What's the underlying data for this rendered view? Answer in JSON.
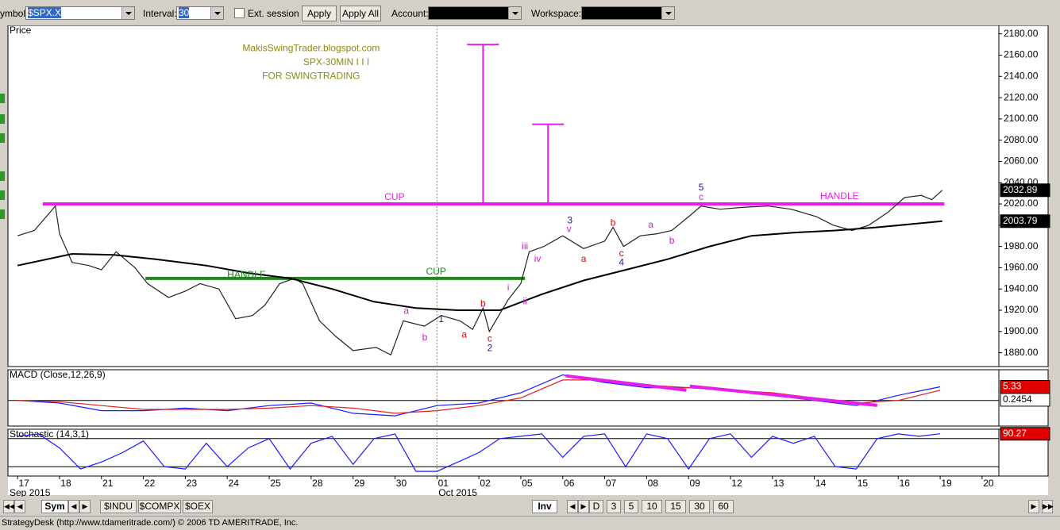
{
  "toolbar": {
    "symbol_label": "ymbol:",
    "symbol": "$SPX.X",
    "interval_label": "Interval:",
    "interval": "30",
    "ext_session": "Ext. session",
    "apply": "Apply",
    "apply_all": "Apply All",
    "account_label": "Account:",
    "workspace_label": "Workspace:"
  },
  "chart_data": [
    {
      "type": "line",
      "title": "Price",
      "xlim": [
        -0.23,
        23.4
      ],
      "ylim": [
        1867,
        2188
      ],
      "yticks": [
        {
          "value": 1880,
          "label": "1880.00"
        },
        {
          "value": 1900,
          "label": "1900.00"
        },
        {
          "value": 1920,
          "label": "1920.00"
        },
        {
          "value": 1940,
          "label": "1940.00"
        },
        {
          "value": 1960,
          "label": "1960.00"
        },
        {
          "value": 1980,
          "label": "1980.00"
        },
        {
          "value": 2000,
          "label": "2000.00"
        },
        {
          "value": 2020,
          "label": "2020.00"
        },
        {
          "value": 2040,
          "label": "2040.00"
        },
        {
          "value": 2060,
          "label": "2060.00"
        },
        {
          "value": 2080,
          "label": "2080.00"
        },
        {
          "value": 2100,
          "label": "2100.00"
        },
        {
          "value": 2120,
          "label": "2120.00"
        },
        {
          "value": 2140,
          "label": "2140.00"
        },
        {
          "value": 2160,
          "label": "2160.00"
        },
        {
          "value": 2180,
          "label": "2180.00"
        }
      ],
      "series": [
        {
          "color": "#222222",
          "x": [
            0,
            0.4,
            0.9,
            1.0,
            1.3,
            1.7,
            2.0,
            2.35,
            2.8,
            3.1,
            3.6,
            4.0,
            4.35,
            4.8,
            5.2,
            5.6,
            5.9,
            6.25,
            6.6,
            6.8,
            7.2,
            7.6,
            8.0,
            8.55,
            8.9,
            9.2,
            9.7,
            10.1,
            10.55,
            10.85,
            11.1,
            11.25,
            11.7,
            12.0,
            12.2,
            12.55,
            13.0,
            13.5,
            14.0,
            14.2,
            14.45,
            14.85,
            15.25,
            15.6,
            16.0,
            16.3,
            16.75,
            17.35,
            17.9,
            18.45,
            19.05,
            19.45,
            19.9,
            20.3,
            20.75,
            21.15,
            21.55,
            21.8,
            22.05
          ],
          "values": [
            1990,
            1995,
            2018,
            1992,
            1965,
            1962,
            1958,
            1975,
            1960,
            1945,
            1932,
            1938,
            1945,
            1940,
            1912,
            1915,
            1925,
            1945,
            1950,
            1945,
            1910,
            1895,
            1882,
            1885,
            1878,
            1910,
            1905,
            1915,
            1910,
            1902,
            1922,
            1900,
            1930,
            1945,
            1975,
            1980,
            1990,
            1978,
            1985,
            1998,
            1980,
            1990,
            1992,
            1995,
            2008,
            2018,
            2015,
            2017,
            2018,
            2015,
            2008,
            2000,
            1995,
            2000,
            2012,
            2026,
            2028,
            2024,
            2032.89
          ]
        },
        {
          "color": "#000000",
          "x": [
            0,
            1.3,
            2.3,
            3.3,
            4.5,
            5.5,
            6.5,
            7.5,
            8.5,
            9.5,
            10.5,
            11.5,
            12.5,
            13.5,
            14.5,
            15.5,
            16.5,
            17.5,
            18.5,
            19.5,
            20.5,
            22.05
          ],
          "values": [
            1962,
            1973,
            1972,
            1968,
            1962,
            1955,
            1950,
            1940,
            1928,
            1922,
            1920,
            1920,
            1935,
            1948,
            1958,
            1968,
            1980,
            1990,
            1993,
            1995,
            1998,
            2003.79
          ]
        }
      ],
      "levels": [
        {
          "value": 2020,
          "x": [
            0.6,
            22.1
          ],
          "color": "#e81ee8"
        },
        {
          "value": 1950,
          "x": [
            3.05,
            12.1
          ],
          "color": "#1a8a1a"
        }
      ],
      "targets": [
        {
          "x": 11.1,
          "values": [
            2020,
            2170
          ],
          "color": "#e81ee8"
        },
        {
          "x": 12.65,
          "values": [
            2020,
            2095
          ],
          "color": "#e81ee8"
        }
      ],
      "last_values": [
        {
          "value": 2032.89,
          "color": "#000000"
        },
        {
          "value": 2003.79,
          "color": "#000000"
        }
      ],
      "annotations": [
        {
          "text": "MakisSwingTrader.blogspot.com",
          "x": 7.0,
          "y": 2166,
          "color": "#8a8a10"
        },
        {
          "text": "SPX-30MIN  I I I",
          "x": 7.6,
          "y": 2153,
          "color": "#8a8a10"
        },
        {
          "text": "FOR SWINGTRADING",
          "x": 7.0,
          "y": 2140,
          "color": "#8a8a10"
        },
        {
          "text": "CUP",
          "x": 8.99,
          "y": 2026,
          "color": "#e81ee8"
        },
        {
          "text": "HANDLE",
          "x": 19.6,
          "y": 2027,
          "color": "#e81ee8"
        },
        {
          "text": "HANDLE",
          "x": 5.46,
          "y": 1953,
          "color": "#1a8a1a"
        },
        {
          "text": "CUP",
          "x": 9.98,
          "y": 1956,
          "color": "#1a8a1a"
        },
        {
          "text": "1",
          "x": 10.1,
          "y": 1911,
          "color": "#2020a0"
        },
        {
          "text": "2",
          "x": 11.26,
          "y": 1884,
          "color": "#2020a0"
        },
        {
          "text": "3",
          "x": 13.17,
          "y": 2004,
          "color": "#2020a0"
        },
        {
          "text": "4",
          "x": 14.4,
          "y": 1964.5,
          "color": "#2020a0"
        },
        {
          "text": "5",
          "x": 16.3,
          "y": 2035,
          "color": "#2020a0"
        },
        {
          "text": "a",
          "x": 9.27,
          "y": 1919,
          "color": "#d020d0"
        },
        {
          "text": "b",
          "x": 9.71,
          "y": 1894,
          "color": "#d020d0"
        },
        {
          "text": "a",
          "x": 10.65,
          "y": 1896.5,
          "color": "#c01010"
        },
        {
          "text": "b",
          "x": 11.1,
          "y": 1925.6,
          "color": "#c01010"
        },
        {
          "text": "c",
          "x": 11.26,
          "y": 1893,
          "color": "#c01010"
        },
        {
          "text": "i",
          "x": 11.7,
          "y": 1941,
          "color": "#d020d0"
        },
        {
          "text": "ii",
          "x": 12.1,
          "y": 1928,
          "color": "#d020d0"
        },
        {
          "text": "iii",
          "x": 12.1,
          "y": 1980,
          "color": "#d020d0"
        },
        {
          "text": "iv",
          "x": 12.4,
          "y": 1968,
          "color": "#d020d0"
        },
        {
          "text": "v",
          "x": 13.15,
          "y": 1996,
          "color": "#d020d0"
        },
        {
          "text": "a",
          "x": 13.5,
          "y": 1968,
          "color": "#c01010"
        },
        {
          "text": "b",
          "x": 14.2,
          "y": 2002,
          "color": "#c01010"
        },
        {
          "text": "c",
          "x": 14.4,
          "y": 1973,
          "color": "#c01010"
        },
        {
          "text": "a",
          "x": 15.1,
          "y": 2000,
          "color": "#d020d0"
        },
        {
          "text": "b",
          "x": 15.6,
          "y": 1985,
          "color": "#d020d0"
        },
        {
          "text": "c",
          "x": 16.3,
          "y": 2026,
          "color": "#d020d0"
        }
      ]
    },
    {
      "type": "line",
      "title": "MACD (Close,12,26,9)",
      "xlim": [
        -0.23,
        23.4
      ],
      "ylim": [
        -10,
        12
      ],
      "hlines": [
        0
      ],
      "series": [
        {
          "color": "#1a1aff",
          "x": [
            0,
            1,
            2,
            3,
            4,
            5,
            6,
            7,
            8,
            9,
            10,
            11,
            12,
            13,
            14,
            15,
            16,
            17,
            18,
            19,
            20,
            21,
            22
          ],
          "values": [
            0,
            -1,
            -4,
            -4,
            -3,
            -4,
            -2,
            -1,
            -5,
            -6,
            -2,
            -1,
            3,
            10,
            7,
            5,
            5,
            4,
            2,
            0,
            -2,
            2,
            5.33
          ]
        },
        {
          "color": "#e02020",
          "x": [
            0,
            1,
            2,
            3,
            4,
            5,
            6,
            7,
            8,
            9,
            10,
            11,
            12,
            13,
            14,
            15,
            16,
            17,
            18,
            19,
            20,
            21,
            22
          ],
          "values": [
            0,
            -0.5,
            -2,
            -3.5,
            -3.5,
            -3.5,
            -3,
            -2,
            -3,
            -5,
            -4,
            -2,
            1,
            8,
            8,
            6,
            5,
            4,
            3,
            1,
            -1,
            0,
            4
          ]
        }
      ],
      "trendlines": [
        {
          "x": [
            13.07,
            15.95
          ],
          "values": [
            9.6,
            4.0
          ],
          "color": "#e81ee8"
        },
        {
          "x": [
            16.03,
            20.5
          ],
          "values": [
            5.6,
            -1.9
          ],
          "color": "#e81ee8"
        }
      ],
      "last_values": [
        {
          "value": 5.33,
          "color": "#e00000"
        },
        {
          "value": 0.2454,
          "color": "#ffffff"
        }
      ]
    },
    {
      "type": "line",
      "title": "Stochastic (14,3,1)",
      "xlim": [
        -0.23,
        23.4
      ],
      "ylim": [
        0,
        100
      ],
      "hlines": [
        80,
        20
      ],
      "series": [
        {
          "color": "#1a1aff",
          "x": [
            0,
            0.5,
            1,
            1.5,
            2,
            2.5,
            3,
            3.5,
            4,
            4.5,
            5,
            5.5,
            6,
            6.5,
            7,
            7.5,
            8,
            8.5,
            9,
            9.5,
            10,
            10.5,
            11,
            11.5,
            12,
            12.5,
            13,
            13.5,
            14,
            14.5,
            15,
            15.5,
            16,
            16.5,
            17,
            17.5,
            18,
            18.5,
            19,
            19.5,
            20,
            20.5,
            21,
            21.5,
            22
          ],
          "values": [
            85,
            90,
            60,
            15,
            30,
            50,
            75,
            20,
            15,
            70,
            20,
            60,
            80,
            15,
            70,
            85,
            25,
            80,
            90,
            10,
            10,
            30,
            50,
            80,
            85,
            90,
            40,
            85,
            90,
            20,
            90,
            80,
            15,
            80,
            90,
            40,
            85,
            70,
            85,
            20,
            15,
            80,
            90,
            85,
            90.27
          ]
        }
      ],
      "last_values": [
        {
          "value": 90.27,
          "color": "#e00000"
        }
      ],
      "xticks": [
        {
          "value": 0,
          "label": "17"
        },
        {
          "value": 1,
          "label": "18"
        },
        {
          "value": 2,
          "label": "21"
        },
        {
          "value": 3,
          "label": "22"
        },
        {
          "value": 4,
          "label": "23"
        },
        {
          "value": 5,
          "label": "24"
        },
        {
          "value": 6,
          "label": "25"
        },
        {
          "value": 7,
          "label": "28"
        },
        {
          "value": 8,
          "label": "29"
        },
        {
          "value": 9,
          "label": "30"
        },
        {
          "value": 10,
          "label": "01"
        },
        {
          "value": 11,
          "label": "02"
        },
        {
          "value": 12,
          "label": "05"
        },
        {
          "value": 13,
          "label": "06"
        },
        {
          "value": 14,
          "label": "07"
        },
        {
          "value": 15,
          "label": "08"
        },
        {
          "value": 16,
          "label": "09"
        },
        {
          "value": 17,
          "label": "12"
        },
        {
          "value": 18,
          "label": "13"
        },
        {
          "value": 19,
          "label": "14"
        },
        {
          "value": 20,
          "label": "15"
        },
        {
          "value": 21,
          "label": "16"
        },
        {
          "value": 22,
          "label": "19"
        },
        {
          "value": 23,
          "label": "20"
        }
      ],
      "x_periods": [
        {
          "value": -0.23,
          "label": "Sep 2015"
        },
        {
          "value": 10,
          "label": "Oct 2015"
        }
      ]
    }
  ],
  "tabs": {
    "left": [
      "Sym"
    ],
    "symbols": [
      "$INDU",
      "$COMPX",
      "$OEX"
    ],
    "right": [
      "Inv"
    ],
    "intervals": [
      "D",
      "3",
      "5",
      "10",
      "15",
      "30",
      "60"
    ]
  },
  "status": "StrategyDesk (http://www.tdameritrade.com/) © 2006 TD AMERITRADE, Inc."
}
